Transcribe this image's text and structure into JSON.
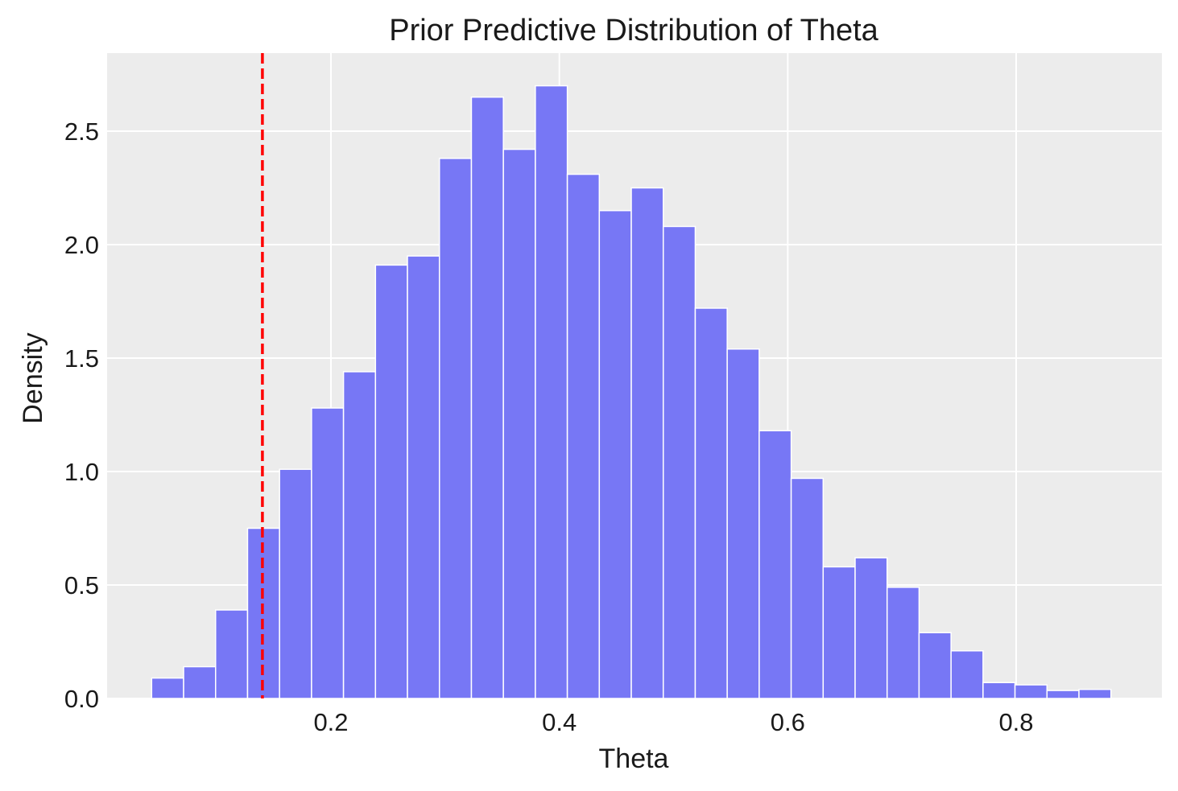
{
  "chart_data": {
    "type": "bar",
    "title": "Prior Predictive Distribution of Theta",
    "xlabel": "Theta",
    "ylabel": "Density",
    "xlim": [
      0.0,
      0.93
    ],
    "ylim": [
      0.0,
      2.84
    ],
    "xticks": [
      0.2,
      0.4,
      0.6,
      0.8
    ],
    "xtick_labels": [
      "0.2",
      "0.4",
      "0.6",
      "0.8"
    ],
    "yticks": [
      0.0,
      0.5,
      1.0,
      1.5,
      2.0,
      2.5
    ],
    "ytick_labels": [
      "0.0",
      "0.5",
      "1.0",
      "1.5",
      "2.0",
      "2.5"
    ],
    "grid": true,
    "bar_color": "#7777f5",
    "bar_edge_color": "#ffffff",
    "background_color": "#ececec",
    "bins": {
      "start": 0.043,
      "width": 0.028,
      "values": [
        0.09,
        0.14,
        0.39,
        0.75,
        1.01,
        1.28,
        1.44,
        1.91,
        1.95,
        2.38,
        2.65,
        2.42,
        2.7,
        2.31,
        2.15,
        2.25,
        2.08,
        1.72,
        1.54,
        1.18,
        0.97,
        0.58,
        0.62,
        0.49,
        0.29,
        0.21,
        0.07,
        0.06,
        0.035,
        0.04
      ]
    },
    "reference_line": {
      "x": 0.14,
      "color": "#ff0000",
      "style": "dashed"
    }
  }
}
